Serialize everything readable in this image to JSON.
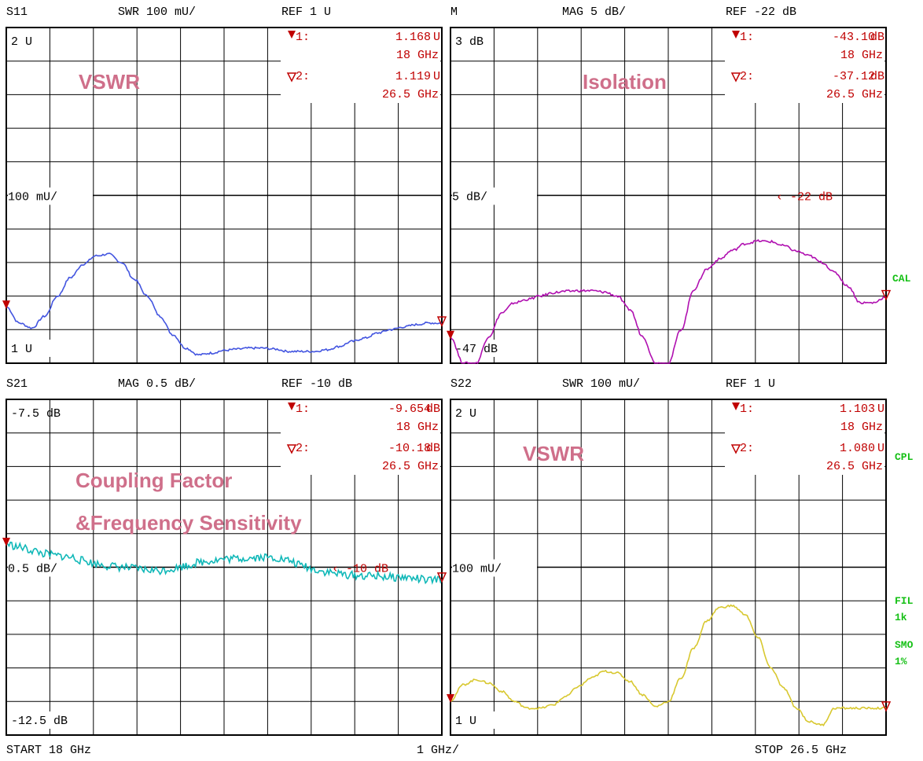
{
  "footer": {
    "start": "START  18 GHz",
    "per_div": "1 GHz/",
    "stop": "STOP 26.5 GHz"
  },
  "side_labels": {
    "cal": "CAL",
    "cpl": "CPL",
    "fil": "FIL",
    "fil_value": "1k",
    "smo": "SMO",
    "smo_value": "1%"
  },
  "chart_data": [
    {
      "type": "line",
      "header": {
        "name": "S11",
        "scale": "SWR 100 mU/",
        "ref": "REF 1 U"
      },
      "annotation": "VSWR",
      "top_label": "2 U",
      "ref_label": "100 mU/",
      "bottom_label": "1 U",
      "ylim": [
        1.0,
        2.0
      ],
      "xlim": [
        18,
        26.5
      ],
      "ref_value": null,
      "ref_marker_text": "",
      "color": "#4355e0",
      "markers": [
        {
          "id": "1:",
          "value": "1.168",
          "unit": "U",
          "freq": "18 GHz",
          "active": true
        },
        {
          "id": "2:",
          "value": "1.119",
          "unit": "U",
          "freq": "26.5 GHz",
          "active": false
        }
      ],
      "series": [
        {
          "x": [
            18,
            18.25,
            18.5,
            18.75,
            19,
            19.25,
            19.5,
            19.75,
            20,
            20.25,
            20.5,
            20.75,
            21,
            21.25,
            21.5,
            21.75,
            22,
            22.25,
            22.5,
            22.75,
            23,
            23.25,
            23.5,
            23.75,
            24,
            24.25,
            24.5,
            24.75,
            25,
            25.25,
            25.5,
            25.75,
            26,
            26.25,
            26.5
          ],
          "y": [
            1.168,
            1.12,
            1.105,
            1.14,
            1.2,
            1.255,
            1.295,
            1.32,
            1.325,
            1.3,
            1.25,
            1.2,
            1.14,
            1.085,
            1.045,
            1.025,
            1.03,
            1.038,
            1.042,
            1.045,
            1.045,
            1.042,
            1.035,
            1.035,
            1.035,
            1.04,
            1.05,
            1.065,
            1.075,
            1.09,
            1.1,
            1.108,
            1.115,
            1.12,
            1.119
          ],
          "jitter": 0.003
        }
      ]
    },
    {
      "type": "line",
      "header": {
        "name": "M",
        "scale": "MAG 5 dB/",
        "ref": "REF -22 dB"
      },
      "annotation": "Isolation",
      "top_label": "3 dB",
      "ref_label": "5 dB/",
      "bottom_label": "-47 dB",
      "ylim": [
        -47,
        3
      ],
      "xlim": [
        18,
        26.5
      ],
      "ref_value": -22,
      "ref_marker_text": "‹ -22 dB",
      "color": "#b010b0",
      "markers": [
        {
          "id": "1:",
          "value": "-43.10",
          "unit": "dB",
          "freq": "18 GHz",
          "active": true
        },
        {
          "id": "2:",
          "value": "-37.12",
          "unit": "dB",
          "freq": "26.5 GHz",
          "active": false
        }
      ],
      "series": [
        {
          "x": [
            18,
            18.25,
            18.5,
            18.75,
            19,
            19.25,
            19.5,
            19.75,
            20,
            20.25,
            20.5,
            20.75,
            21,
            21.25,
            21.5,
            21.75,
            22,
            22.25,
            22.5,
            22.75,
            23,
            23.25,
            23.5,
            23.75,
            24,
            24.25,
            24.5,
            24.75,
            25,
            25.25,
            25.5,
            25.75,
            26,
            26.25,
            26.5
          ],
          "y": [
            -43.1,
            -47,
            -47,
            -43,
            -39.5,
            -38,
            -37.5,
            -37,
            -36.5,
            -36.3,
            -36.2,
            -36.2,
            -36.4,
            -37,
            -39,
            -43,
            -47,
            -47,
            -42,
            -36,
            -33,
            -31.5,
            -30.2,
            -29.2,
            -28.8,
            -28.9,
            -29.5,
            -30.3,
            -31,
            -32,
            -33.5,
            -35.5,
            -38,
            -38,
            -37.12
          ],
          "jitter": 0.18
        }
      ]
    },
    {
      "type": "line",
      "header": {
        "name": "S21",
        "scale": "MAG 0.5 dB/",
        "ref": "REF -10 dB"
      },
      "annotation": "Coupling Factor",
      "annotation2": "&Frequency Sensitivity",
      "top_label": "-7.5 dB",
      "ref_label": "0.5 dB/",
      "bottom_label": "-12.5 dB",
      "ylim": [
        -12.5,
        -7.5
      ],
      "xlim": [
        18,
        26.5
      ],
      "ref_value": -10,
      "ref_marker_text": "‹ -10 dB",
      "color": "#10b8b8",
      "markers": [
        {
          "id": "1:",
          "value": "-9.654",
          "unit": "dB",
          "freq": "18 GHz",
          "active": true
        },
        {
          "id": "2:",
          "value": "-10.18",
          "unit": "dB",
          "freq": "26.5 GHz",
          "active": false
        }
      ],
      "series": [
        {
          "x": [
            18,
            18.25,
            18.5,
            18.75,
            19,
            19.25,
            19.5,
            19.75,
            20,
            20.25,
            20.5,
            20.75,
            21,
            21.25,
            21.5,
            21.75,
            22,
            22.25,
            22.5,
            22.75,
            23,
            23.25,
            23.5,
            23.75,
            24,
            24.25,
            24.5,
            24.75,
            25,
            25.25,
            25.5,
            25.75,
            26,
            26.25,
            26.5
          ],
          "y": [
            -9.654,
            -9.7,
            -9.75,
            -9.8,
            -9.83,
            -9.85,
            -9.9,
            -9.95,
            -9.98,
            -10,
            -10.02,
            -10.04,
            -10.05,
            -10.02,
            -9.98,
            -9.93,
            -9.9,
            -9.88,
            -9.87,
            -9.86,
            -9.85,
            -9.86,
            -9.9,
            -9.97,
            -10.03,
            -10.07,
            -10.1,
            -10.12,
            -10.13,
            -10.13,
            -10.15,
            -10.15,
            -10.17,
            -10.2,
            -10.18
          ],
          "jitter": 0.06
        }
      ]
    },
    {
      "type": "line",
      "header": {
        "name": "S22",
        "scale": "SWR 100 mU/",
        "ref": "REF 1 U"
      },
      "annotation": "VSWR",
      "top_label": "2 U",
      "ref_label": "100 mU/",
      "bottom_label": "1 U",
      "ylim": [
        1.0,
        2.0
      ],
      "xlim": [
        18,
        26.5
      ],
      "ref_value": null,
      "ref_marker_text": "",
      "color": "#d8c830",
      "markers": [
        {
          "id": "1:",
          "value": "1.103",
          "unit": "U",
          "freq": "18 GHz",
          "active": true
        },
        {
          "id": "2:",
          "value": "1.080",
          "unit": "U",
          "freq": "26.5 GHz",
          "active": false
        }
      ],
      "series": [
        {
          "x": [
            18,
            18.25,
            18.5,
            18.75,
            19,
            19.25,
            19.5,
            19.75,
            20,
            20.25,
            20.5,
            20.75,
            21,
            21.25,
            21.5,
            21.75,
            22,
            22.25,
            22.5,
            22.75,
            23,
            23.25,
            23.5,
            23.75,
            24,
            24.25,
            24.5,
            24.75,
            25,
            25.25,
            25.5,
            25.75,
            26,
            26.25,
            26.5
          ],
          "y": [
            1.103,
            1.15,
            1.165,
            1.155,
            1.13,
            1.1,
            1.08,
            1.08,
            1.09,
            1.115,
            1.145,
            1.17,
            1.19,
            1.185,
            1.16,
            1.12,
            1.085,
            1.1,
            1.17,
            1.26,
            1.34,
            1.38,
            1.385,
            1.36,
            1.29,
            1.2,
            1.14,
            1.08,
            1.04,
            1.03,
            1.08,
            1.08,
            1.08,
            1.08,
            1.08
          ],
          "jitter": 0.003
        }
      ]
    }
  ]
}
